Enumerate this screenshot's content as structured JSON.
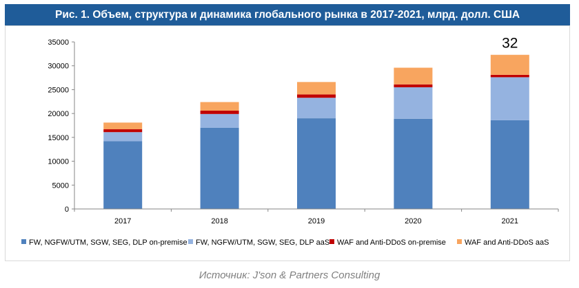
{
  "title": "Рис. 1. Объем, структура и динамика глобального рынка в 2017-2021, млрд. долл. США",
  "source": "Источник: J'son & Partners Consulting",
  "chart_data": {
    "type": "bar",
    "stacked": true,
    "categories": [
      "2017",
      "2018",
      "2019",
      "2020",
      "2021"
    ],
    "series": [
      {
        "name": "FW, NGFW/UTM, SGW, SEG, DLP on-premise",
        "color": "#4f81bd",
        "values": [
          14200,
          17000,
          19000,
          18900,
          18600
        ]
      },
      {
        "name": "FW, NGFW/UTM, SGW, SEG, DLP aaS",
        "color": "#95b3e0",
        "values": [
          1900,
          2900,
          4300,
          6600,
          9000
        ]
      },
      {
        "name": "WAF and Anti-DDoS on-premise",
        "color": "#c00000",
        "values": [
          600,
          700,
          700,
          600,
          500
        ]
      },
      {
        "name": "WAF and Anti-DDoS aaS",
        "color": "#f8a55f",
        "values": [
          1400,
          1800,
          2600,
          3500,
          4200
        ]
      }
    ],
    "ylim": [
      0,
      35000
    ],
    "yticks": [
      "0",
      "5000",
      "10000",
      "15000",
      "20000",
      "25000",
      "30000",
      "35000"
    ],
    "annotations": [
      {
        "category": "2021",
        "text": "32"
      }
    ],
    "grid": false,
    "legend_position": "bottom"
  }
}
